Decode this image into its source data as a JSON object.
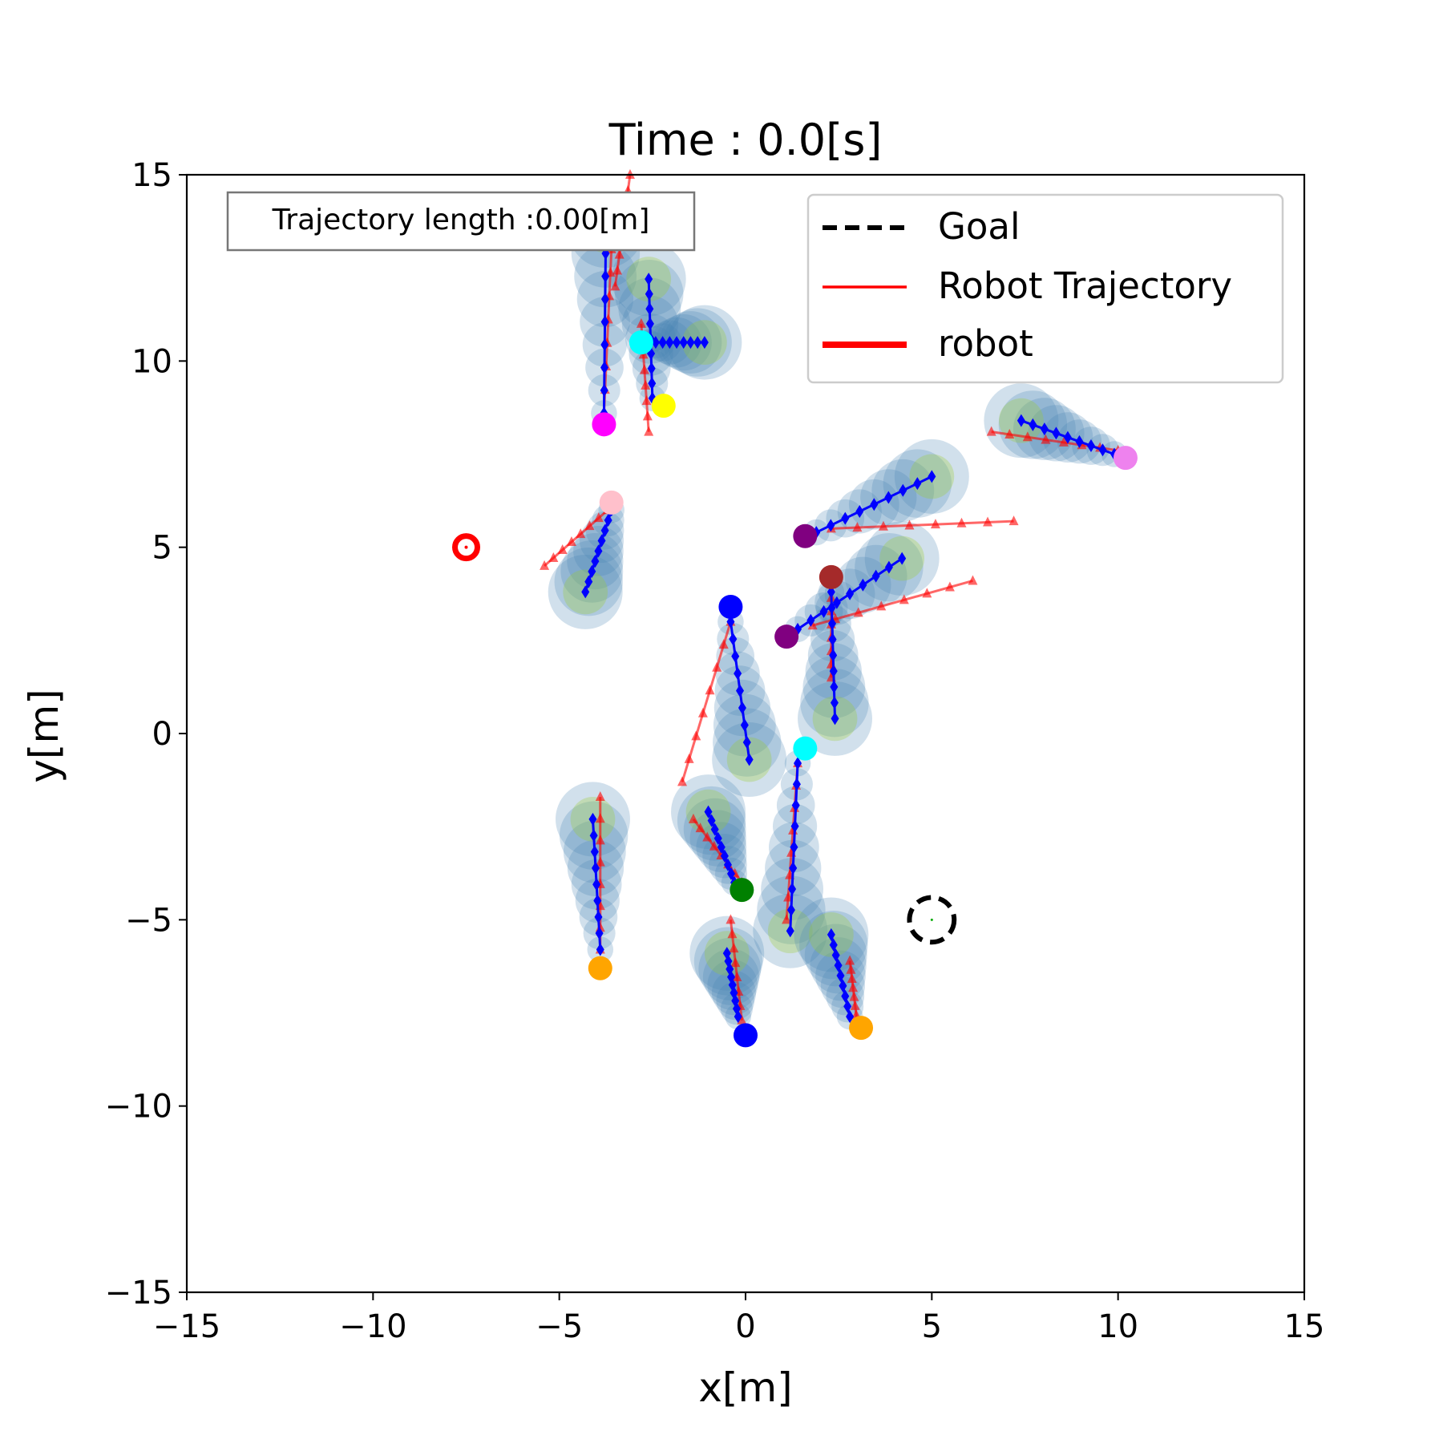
{
  "chart_data": {
    "type": "scatter",
    "title": "Time : 0.0[s]",
    "xlabel": "x[m]",
    "ylabel": "y[m]",
    "xlim": [
      -15,
      15
    ],
    "ylim": [
      -15,
      15
    ],
    "xticks": [
      -15,
      -10,
      -5,
      0,
      5,
      10,
      15
    ],
    "yticks": [
      -15,
      -10,
      -5,
      0,
      5,
      10,
      15
    ],
    "xtick_labels": [
      "−15",
      "−10",
      "−5",
      "0",
      "5",
      "10",
      "15"
    ],
    "ytick_labels": [
      "−15",
      "−10",
      "−5",
      "0",
      "5",
      "10",
      "15"
    ],
    "grid": false,
    "annotation": "Trajectory length :0.00[m]",
    "legend": {
      "placement": "top-right",
      "entries": [
        {
          "label": "Goal",
          "style": "dashed",
          "color": "#000000"
        },
        {
          "label": "Robot Trajectory",
          "style": "solid-thin",
          "color": "#ff0000"
        },
        {
          "label": "robot",
          "style": "solid-thick",
          "color": "#ff0000"
        }
      ]
    },
    "robot": {
      "x": -7.5,
      "y": 5.0,
      "color": "#ff0000"
    },
    "goal": {
      "x": 5.0,
      "y": -5.0,
      "radius": 0.6,
      "color": "#000000"
    },
    "colors": {
      "prediction": "#0000ff",
      "trajectory": "#ff0000",
      "halo": "#4682b4",
      "halo_inner": "#9acd32"
    },
    "agents": [
      {
        "id": 1,
        "color": "#ff00ff",
        "pos": [
          -3.8,
          8.3
        ],
        "pred": [
          [
            -3.8,
            8.6
          ],
          [
            -3.75,
            13.5
          ]
        ],
        "traj": [
          [
            -3.8,
            8.6
          ],
          [
            -3.6,
            13.0
          ]
        ]
      },
      {
        "id": 2,
        "color": "#00ffff",
        "pos": [
          -2.8,
          10.5
        ],
        "pred": [
          [
            -2.6,
            10.5
          ],
          [
            -1.1,
            10.5
          ]
        ],
        "traj": [
          [
            -3.1,
            15.0
          ],
          [
            -3.5,
            12.0
          ]
        ]
      },
      {
        "id": 3,
        "color": "#ffff00",
        "pos": [
          -2.2,
          8.8
        ],
        "pred": [
          [
            -2.5,
            9.0
          ],
          [
            -2.6,
            12.2
          ]
        ],
        "traj": [
          [
            -2.6,
            8.1
          ],
          [
            -2.8,
            11.0
          ]
        ]
      },
      {
        "id": 4,
        "color": "#ffc0cb",
        "pos": [
          -3.6,
          6.2
        ],
        "pred": [
          [
            -3.6,
            6.0
          ],
          [
            -4.3,
            3.8
          ]
        ],
        "traj": [
          [
            -5.4,
            4.5
          ],
          [
            -3.7,
            6.0
          ]
        ]
      },
      {
        "id": 5,
        "color": "#ee82ee",
        "pos": [
          10.2,
          7.4
        ],
        "pred": [
          [
            9.9,
            7.5
          ],
          [
            7.4,
            8.4
          ]
        ],
        "traj": [
          [
            10.0,
            7.6
          ],
          [
            6.6,
            8.1
          ]
        ]
      },
      {
        "id": 6,
        "color": "#800080",
        "pos": [
          1.6,
          5.3
        ],
        "pred": [
          [
            1.9,
            5.4
          ],
          [
            5.0,
            6.9
          ]
        ],
        "traj": [
          [
            2.3,
            5.5
          ],
          [
            7.2,
            5.7
          ]
        ]
      },
      {
        "id": 7,
        "color": "#800080",
        "pos": [
          1.1,
          2.6
        ],
        "pred": [
          [
            1.4,
            2.8
          ],
          [
            4.2,
            4.7
          ]
        ],
        "traj": [
          [
            1.8,
            2.9
          ],
          [
            6.1,
            4.1
          ]
        ]
      },
      {
        "id": 8,
        "color": "#a52a2a",
        "pos": [
          2.3,
          4.2
        ],
        "pred": [
          [
            2.3,
            3.8
          ],
          [
            2.4,
            0.4
          ]
        ],
        "traj": [
          [
            2.3,
            4.0
          ],
          [
            2.3,
            1.5
          ]
        ]
      },
      {
        "id": 9,
        "color": "#0000ff",
        "pos": [
          -0.4,
          3.4
        ],
        "pred": [
          [
            -0.4,
            3.0
          ],
          [
            0.1,
            -0.7
          ]
        ],
        "traj": [
          [
            -0.4,
            3.0
          ],
          [
            -1.7,
            -1.3
          ]
        ]
      },
      {
        "id": 10,
        "color": "#00ffff",
        "pos": [
          1.6,
          -0.4
        ],
        "pred": [
          [
            1.4,
            -0.8
          ],
          [
            1.2,
            -5.3
          ]
        ],
        "traj": [
          [
            1.4,
            -0.8
          ],
          [
            1.1,
            -5.0
          ]
        ]
      },
      {
        "id": 11,
        "color": "#008000",
        "pos": [
          -0.1,
          -4.2
        ],
        "pred": [
          [
            -0.3,
            -4.0
          ],
          [
            -1.0,
            -2.1
          ]
        ],
        "traj": [
          [
            -1.4,
            -2.3
          ],
          [
            -0.1,
            -4.0
          ]
        ]
      },
      {
        "id": 12,
        "color": "#ffa500",
        "pos": [
          -3.9,
          -6.3
        ],
        "pred": [
          [
            -3.9,
            -5.8
          ],
          [
            -4.1,
            -2.3
          ]
        ],
        "traj": [
          [
            -3.9,
            -5.8
          ],
          [
            -3.9,
            -1.7
          ]
        ]
      },
      {
        "id": 13,
        "color": "#0000ff",
        "pos": [
          -0.0,
          -8.1
        ],
        "pred": [
          [
            -0.2,
            -7.6
          ],
          [
            -0.5,
            -5.9
          ]
        ],
        "traj": [
          [
            -0.1,
            -7.7
          ],
          [
            -0.4,
            -5.0
          ]
        ]
      },
      {
        "id": 14,
        "color": "#ffa500",
        "pos": [
          3.1,
          -7.9
        ],
        "pred": [
          [
            2.8,
            -7.6
          ],
          [
            2.3,
            -5.4
          ]
        ],
        "traj": [
          [
            3.0,
            -7.8
          ],
          [
            2.8,
            -6.1
          ]
        ]
      }
    ]
  }
}
